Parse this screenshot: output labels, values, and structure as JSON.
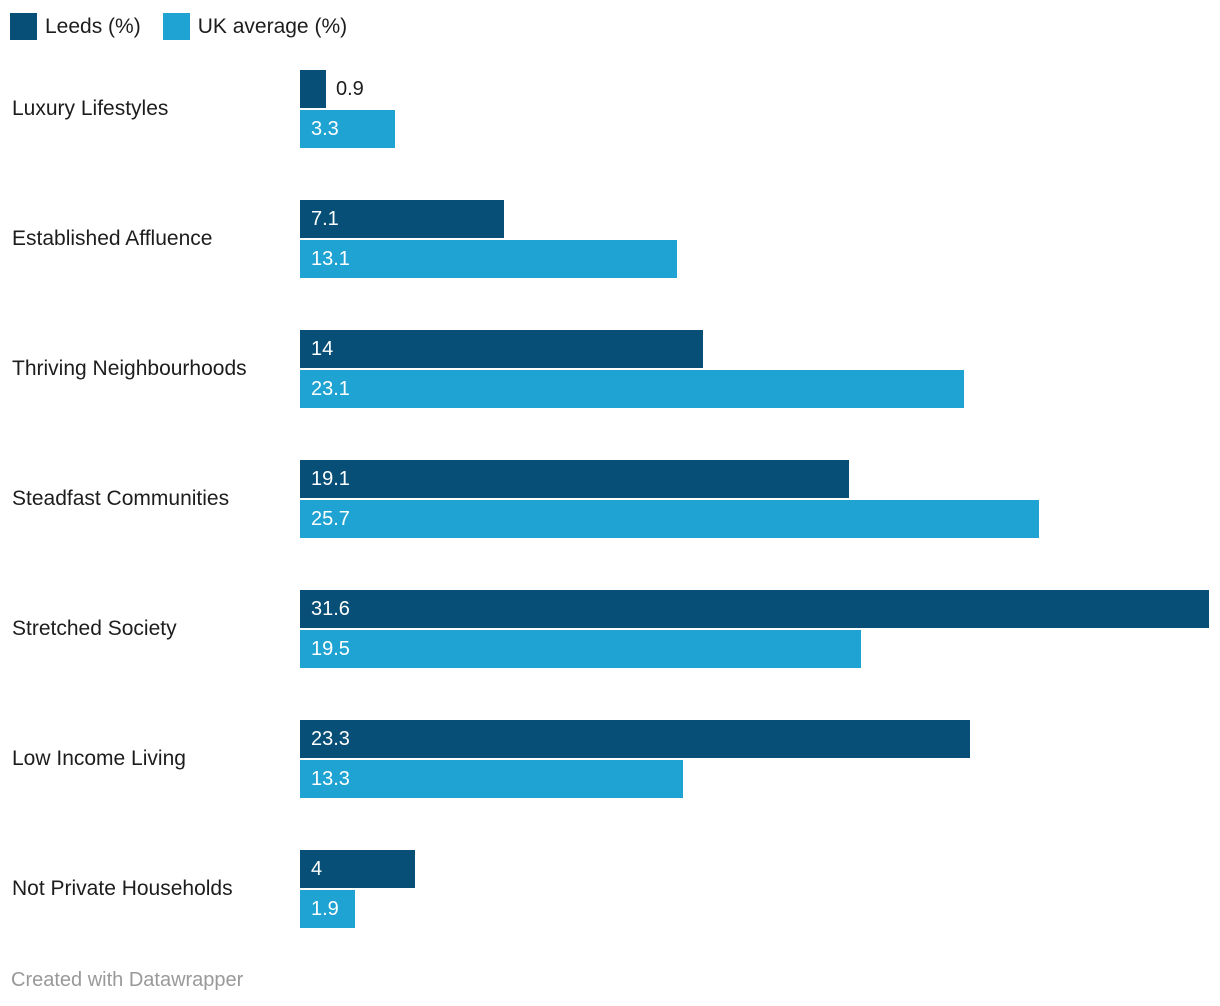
{
  "chart_data": {
    "type": "bar",
    "orientation": "horizontal",
    "categories": [
      "Luxury Lifestyles",
      "Established Affluence",
      "Thriving Neighbourhoods",
      "Steadfast Communities",
      "Stretched Society",
      "Low Income Living",
      "Not Private Households"
    ],
    "series": [
      {
        "name": "Leeds (%)",
        "color": "#074F76",
        "values": [
          0.9,
          7.1,
          14,
          19.1,
          31.6,
          23.3,
          4
        ]
      },
      {
        "name": "UK average (%)",
        "color": "#1EA3D3",
        "values": [
          3.3,
          13.1,
          23.1,
          25.7,
          19.5,
          13.3,
          1.9
        ]
      }
    ],
    "xlim": [
      0,
      31.6
    ],
    "grid": false,
    "axes_shown": false,
    "value_labels": "start-of-bar, white inside bar; dark outside bar when bar too short",
    "legend_position": "top-left"
  },
  "legend": {
    "items": [
      {
        "label": "Leeds (%)",
        "color": "#074F76"
      },
      {
        "label": "UK average (%)",
        "color": "#1EA3D3"
      }
    ]
  },
  "footer": {
    "text": "Created with Datawrapper"
  },
  "colors": {
    "leeds": "#074F76",
    "uk_average": "#1EA3D3",
    "label_text": "#1d1d1d",
    "value_inside_text": "#ffffff",
    "footer_text": "#999999",
    "background": "#ffffff"
  }
}
